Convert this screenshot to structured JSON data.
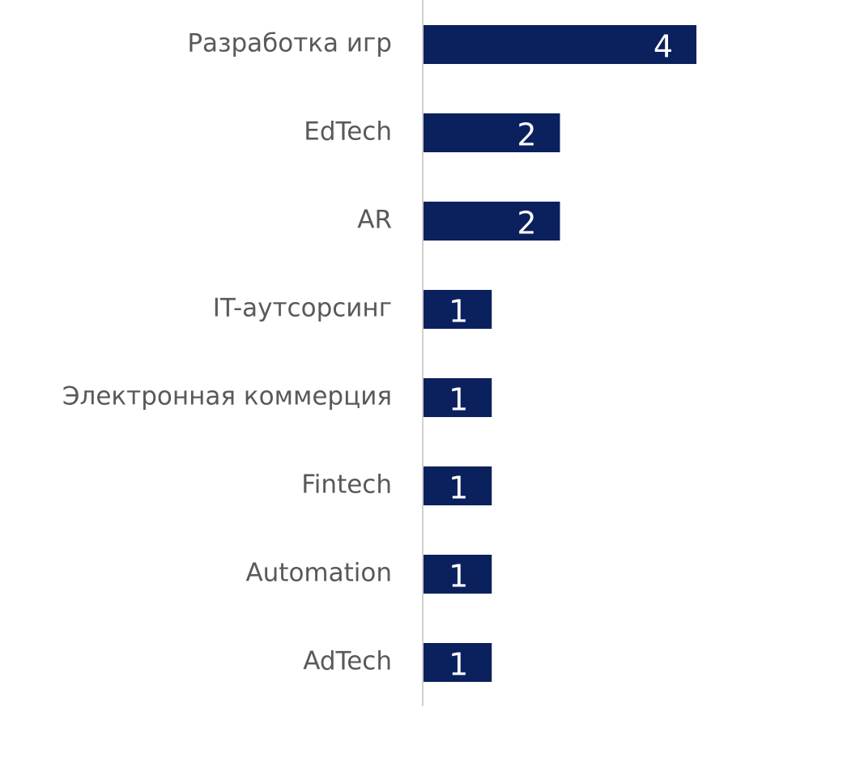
{
  "chart_data": {
    "type": "bar",
    "categories": [
      "Разработка игр",
      "EdTech",
      "AR",
      "IT-аутсорсинг",
      "Электронная коммерция",
      "Fintech",
      "Automation",
      "AdTech"
    ],
    "values": [
      4,
      2,
      2,
      1,
      1,
      1,
      1,
      1
    ],
    "color": "#0b215e"
  }
}
